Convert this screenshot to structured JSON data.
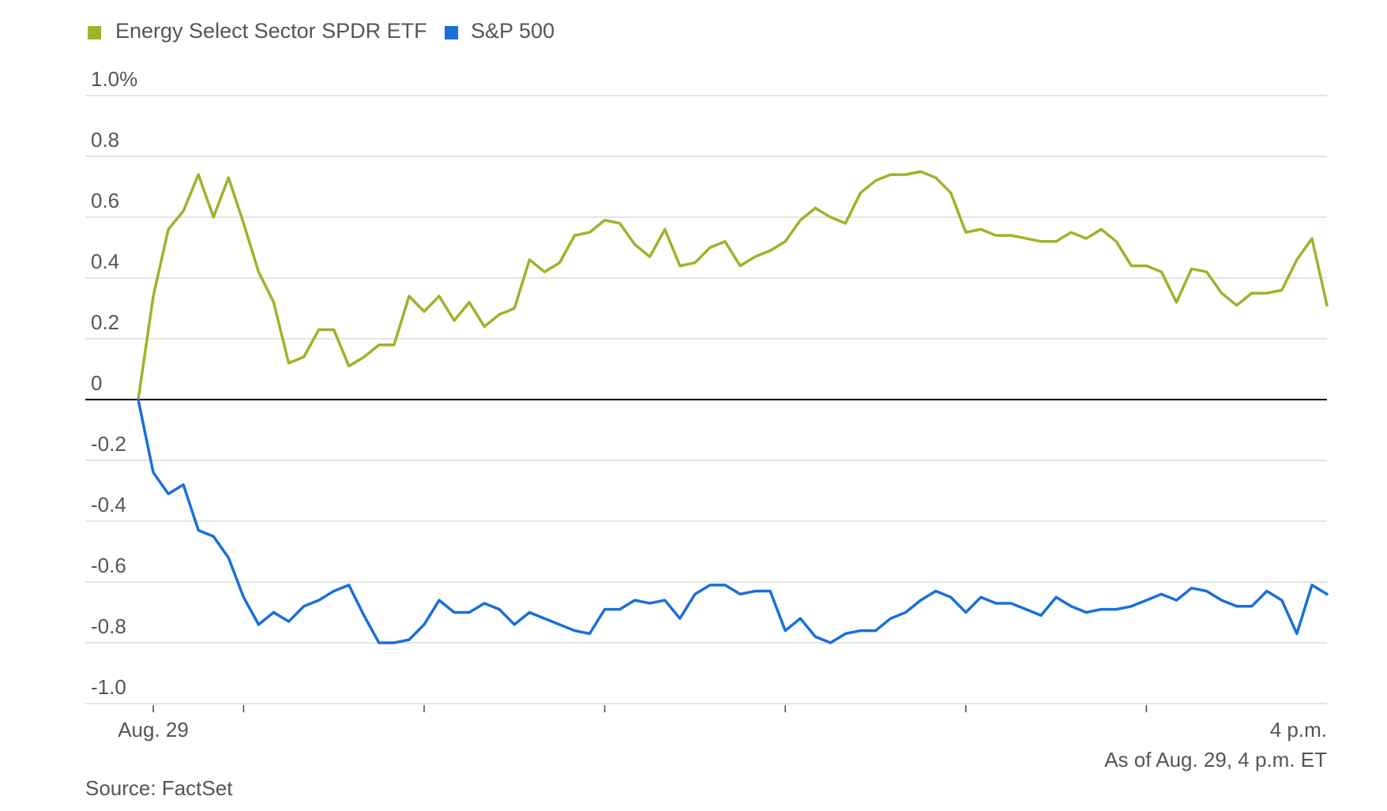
{
  "chart_data": {
    "type": "line",
    "legend_position": "top-left",
    "grid": true,
    "ylim": [
      -1.0,
      1.0
    ],
    "y_ticks": [
      1.0,
      0.8,
      0.6,
      0.4,
      0.2,
      0,
      -0.2,
      -0.4,
      -0.6,
      -0.8,
      -1.0
    ],
    "y_tick_labels": [
      "1.0%",
      "0.8",
      "0.6",
      "0.4",
      "0.2",
      "0",
      "-0.2",
      "-0.4",
      "-0.6",
      "-0.8",
      "-1.0"
    ],
    "x_labels": [
      {
        "label": "Aug. 29",
        "index": 1
      },
      {
        "label": "4 p.m.",
        "index": 79
      }
    ],
    "x_tick_indices": [
      1,
      7,
      19,
      31,
      43,
      55,
      67
    ],
    "x_count": 80,
    "note": "As of Aug. 29, 4 p.m. ET",
    "source": "Source: FactSet",
    "series": [
      {
        "name": "Energy Select Sector SPDR ETF",
        "color": "#9ab52a",
        "values": [
          0.0,
          0.34,
          0.56,
          0.62,
          0.74,
          0.6,
          0.73,
          0.58,
          0.42,
          0.32,
          0.12,
          0.14,
          0.23,
          0.23,
          0.11,
          0.14,
          0.18,
          0.18,
          0.34,
          0.29,
          0.34,
          0.26,
          0.32,
          0.24,
          0.28,
          0.3,
          0.46,
          0.42,
          0.45,
          0.54,
          0.55,
          0.59,
          0.58,
          0.51,
          0.47,
          0.56,
          0.44,
          0.45,
          0.5,
          0.52,
          0.44,
          0.47,
          0.49,
          0.52,
          0.59,
          0.63,
          0.6,
          0.58,
          0.68,
          0.72,
          0.74,
          0.74,
          0.75,
          0.73,
          0.68,
          0.55,
          0.56,
          0.54,
          0.54,
          0.53,
          0.52,
          0.52,
          0.55,
          0.53,
          0.56,
          0.52,
          0.44,
          0.44,
          0.42,
          0.32,
          0.43,
          0.42,
          0.35,
          0.31,
          0.35,
          0.35,
          0.36,
          0.46,
          0.53,
          0.31
        ]
      },
      {
        "name": "S&P 500",
        "color": "#1a6fd8",
        "values": [
          0.0,
          -0.24,
          -0.31,
          -0.28,
          -0.43,
          -0.45,
          -0.52,
          -0.65,
          -0.74,
          -0.7,
          -0.73,
          -0.68,
          -0.66,
          -0.63,
          -0.61,
          -0.71,
          -0.8,
          -0.8,
          -0.79,
          -0.74,
          -0.66,
          -0.7,
          -0.7,
          -0.67,
          -0.69,
          -0.74,
          -0.7,
          -0.72,
          -0.74,
          -0.76,
          -0.77,
          -0.69,
          -0.69,
          -0.66,
          -0.67,
          -0.66,
          -0.72,
          -0.64,
          -0.61,
          -0.61,
          -0.64,
          -0.63,
          -0.63,
          -0.76,
          -0.72,
          -0.78,
          -0.8,
          -0.77,
          -0.76,
          -0.76,
          -0.72,
          -0.7,
          -0.66,
          -0.63,
          -0.65,
          -0.7,
          -0.65,
          -0.67,
          -0.67,
          -0.69,
          -0.71,
          -0.65,
          -0.68,
          -0.7,
          -0.69,
          -0.69,
          -0.68,
          -0.66,
          -0.64,
          -0.66,
          -0.62,
          -0.63,
          -0.66,
          -0.68,
          -0.68,
          -0.63,
          -0.66,
          -0.77,
          -0.61,
          -0.64
        ]
      }
    ]
  }
}
